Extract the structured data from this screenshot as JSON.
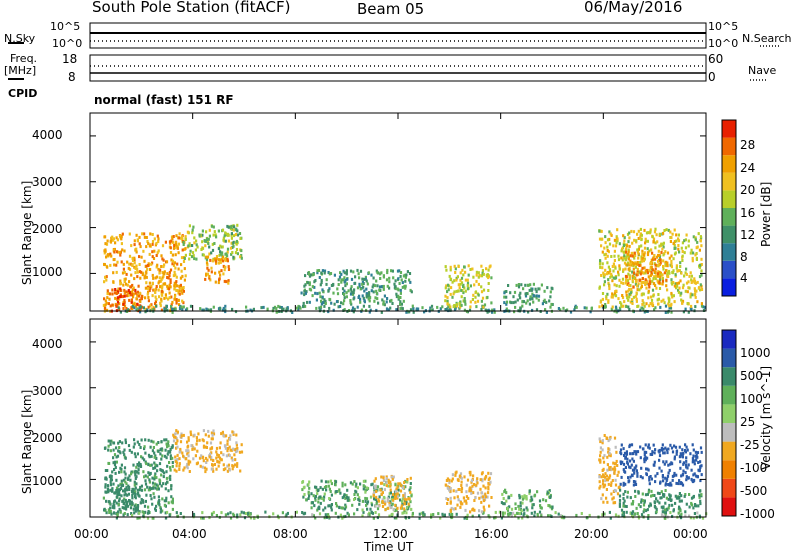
{
  "header": {
    "title": "South Pole Station (fitACF)",
    "beam": "Beam 05",
    "date": "06/May/2016"
  },
  "top_panels": {
    "nsky_label": "N.Sky",
    "nsearch_label": "N.Search",
    "left_ticks_top": [
      "10^5",
      "10^0"
    ],
    "right_ticks_top": [
      "10^5",
      "10^0"
    ],
    "freq_label_line1": "Freq.",
    "freq_label_line2": "[MHz]",
    "freq_ticks": [
      "18",
      "8"
    ],
    "nave_label": "Nave",
    "nave_ticks": [
      "60",
      "0"
    ],
    "cpid_label": "CPID",
    "cpid_text": "normal (fast) 151 RF"
  },
  "colors": {
    "power_scale": [
      "#0a1fe0",
      "#2a4fc8",
      "#2f7f96",
      "#3f9068",
      "#5fb05a",
      "#b8cf2a",
      "#f0c020",
      "#f0a000",
      "#f06800",
      "#e82000"
    ],
    "velocity_scale": [
      "#e01010",
      "#f04818",
      "#f08000",
      "#f0a820",
      "#bdbdbd",
      "#8fcf6a",
      "#5fb05a",
      "#3a8a6a",
      "#2a5aa8",
      "#1a2ac0"
    ]
  },
  "chart_data": [
    {
      "type": "heatmap",
      "name": "power",
      "ylabel": "Slant Range [km]",
      "yticks": [
        "1000",
        "2000",
        "3000",
        "4000"
      ],
      "ylim": [
        180,
        4500
      ],
      "xlim": [
        "00:00",
        "24:00"
      ],
      "colorbar_label": "Power [dB]",
      "colorbar_ticks": [
        "4",
        "8",
        "12",
        "16",
        "20",
        "24",
        "28"
      ],
      "colorbar_range": [
        0,
        30
      ],
      "echo_regions": [
        {
          "t0": 0.5,
          "t1": 3.7,
          "r0": 200,
          "r1": 1900,
          "level": 22
        },
        {
          "t0": 0.8,
          "t1": 2.0,
          "r0": 200,
          "r1": 700,
          "level": 27
        },
        {
          "t0": 3.6,
          "t1": 5.9,
          "r0": 1300,
          "r1": 2100,
          "level": 15
        },
        {
          "t0": 4.4,
          "t1": 5.4,
          "r0": 800,
          "r1": 1400,
          "level": 23
        },
        {
          "t0": 1.0,
          "t1": 24.0,
          "r0": 180,
          "r1": 320,
          "level": 10
        },
        {
          "t0": 8.2,
          "t1": 12.5,
          "r0": 350,
          "r1": 1100,
          "level": 11
        },
        {
          "t0": 13.8,
          "t1": 15.6,
          "r0": 300,
          "r1": 1200,
          "level": 17
        },
        {
          "t0": 16.0,
          "t1": 18.0,
          "r0": 350,
          "r1": 800,
          "level": 11
        },
        {
          "t0": 19.8,
          "t1": 23.8,
          "r0": 300,
          "r1": 2000,
          "level": 18
        },
        {
          "t0": 20.8,
          "t1": 22.5,
          "r0": 700,
          "r1": 1500,
          "level": 23
        }
      ]
    },
    {
      "type": "heatmap",
      "name": "velocity",
      "ylabel": "Slant Range [km]",
      "yticks": [
        "1000",
        "2000",
        "3000",
        "4000"
      ],
      "ylim": [
        180,
        4500
      ],
      "xlim": [
        "00:00",
        "24:00"
      ],
      "xlabel": "Time UT",
      "xticks": [
        "00:00",
        "04:00",
        "08:00",
        "12:00",
        "16:00",
        "20:00",
        "00:00"
      ],
      "colorbar_label": "Velocity [m s^-1]",
      "colorbar_ticks": [
        "-1000",
        "-500",
        "-100",
        "-25",
        "25",
        "100",
        "500",
        "1000"
      ],
      "echo_regions": [
        {
          "t0": 0.5,
          "t1": 3.2,
          "r0": 300,
          "r1": 1900,
          "level": 150
        },
        {
          "t0": 0.7,
          "t1": 2.0,
          "r0": 250,
          "r1": 900,
          "level": 300
        },
        {
          "t0": 3.2,
          "t1": 5.9,
          "r0": 1200,
          "r1": 2100,
          "level": -150
        },
        {
          "t0": 1.0,
          "t1": 24.0,
          "r0": 180,
          "r1": 320,
          "level": 60
        },
        {
          "t0": 8.2,
          "t1": 12.5,
          "r0": 350,
          "r1": 1000,
          "level": 80
        },
        {
          "t0": 11.0,
          "t1": 12.5,
          "r0": 350,
          "r1": 1100,
          "level": -150
        },
        {
          "t0": 13.8,
          "t1": 15.6,
          "r0": 300,
          "r1": 1200,
          "level": -150
        },
        {
          "t0": 16.0,
          "t1": 18.0,
          "r0": 350,
          "r1": 800,
          "level": 80
        },
        {
          "t0": 19.8,
          "t1": 20.6,
          "r0": 500,
          "r1": 2000,
          "level": -150
        },
        {
          "t0": 20.6,
          "t1": 23.8,
          "r0": 900,
          "r1": 1800,
          "level": 700
        },
        {
          "t0": 20.6,
          "t1": 23.8,
          "r0": 300,
          "r1": 800,
          "level": 150
        }
      ]
    }
  ]
}
